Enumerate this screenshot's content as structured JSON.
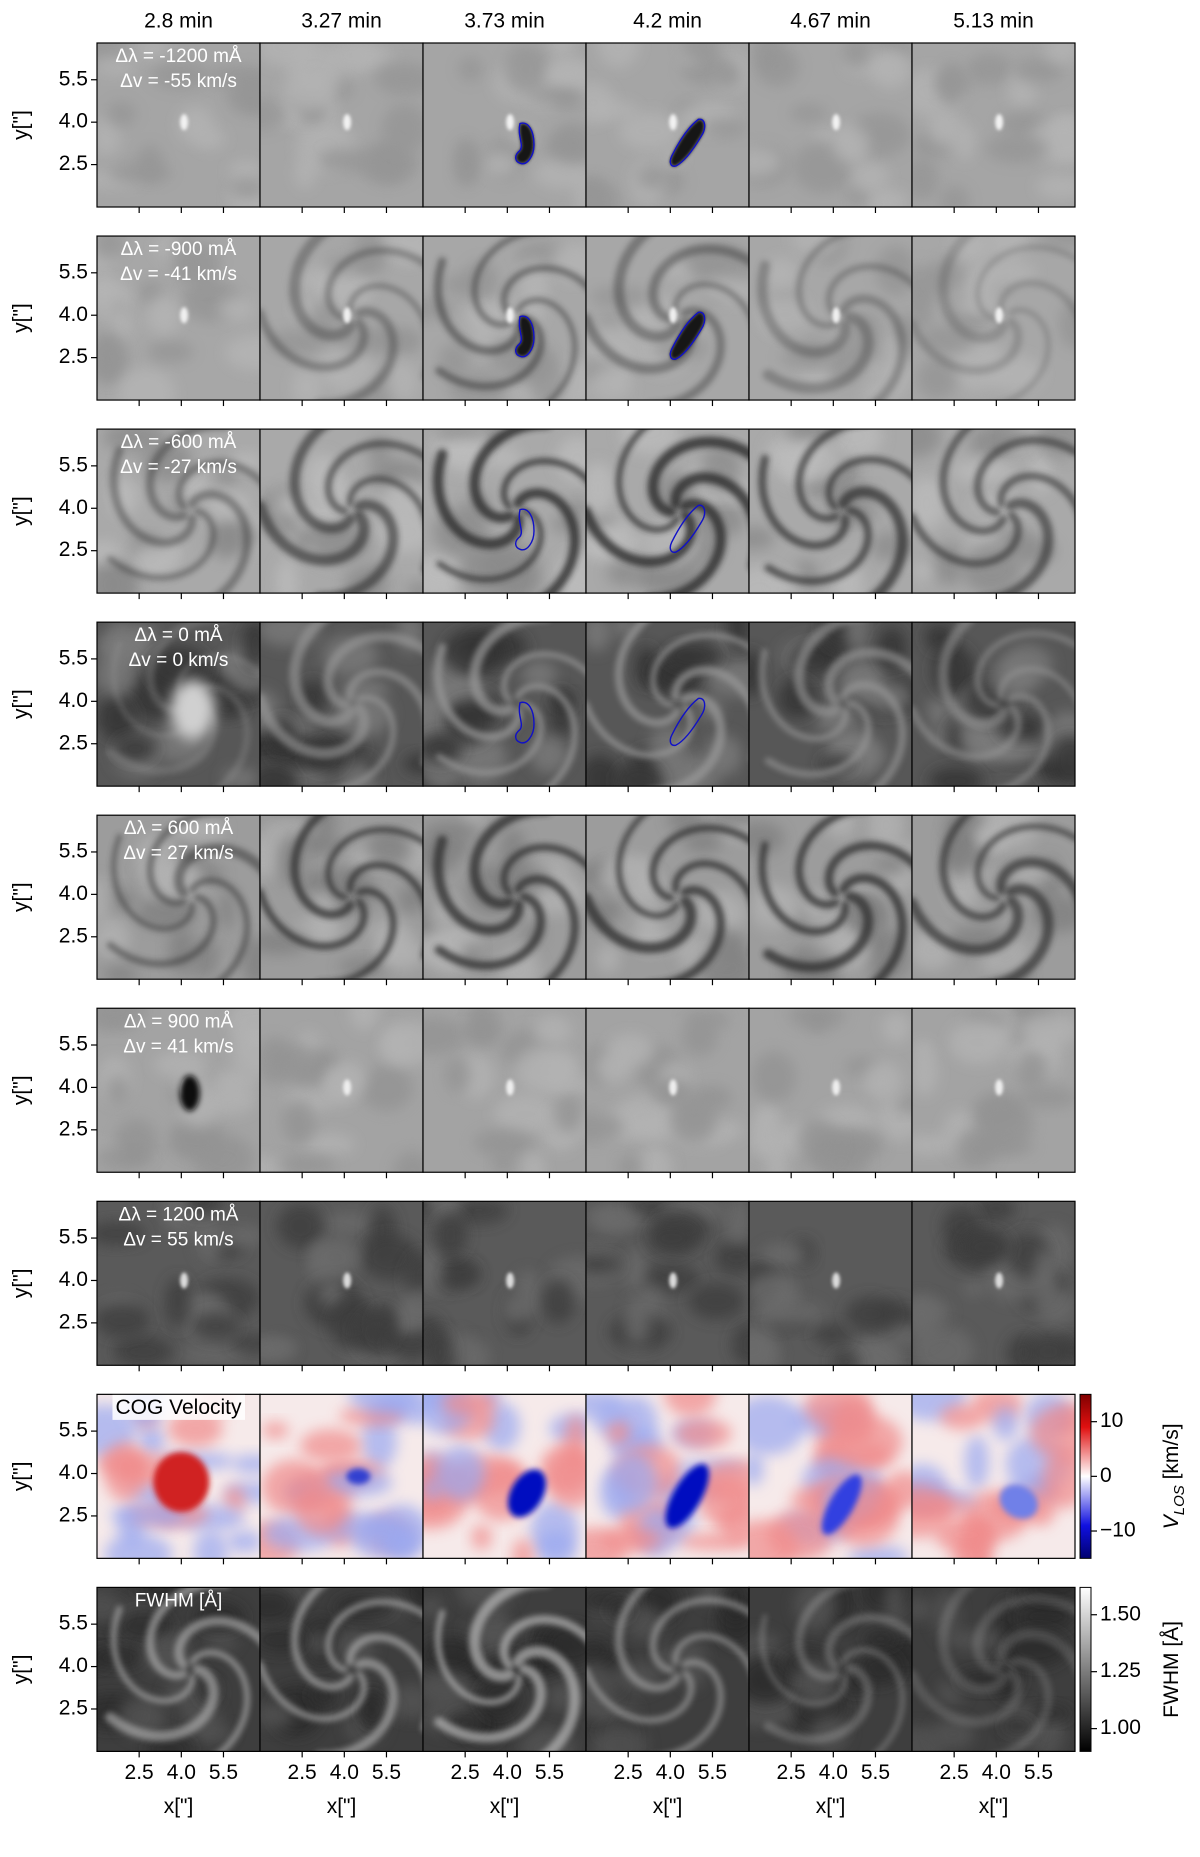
{
  "chart_data": {
    "type": "image-grid",
    "columns": [
      "2.8 min",
      "3.27 min",
      "3.73 min",
      "4.2 min",
      "4.67 min",
      "5.13 min"
    ],
    "xlabel": "x[\"]",
    "ylabel": "y[\"]",
    "xlim": [
      1.0,
      6.8
    ],
    "ylim": [
      1.0,
      6.8
    ],
    "xticks": [
      2.5,
      {
        "value": 4,
        "label": "4.0"
      },
      5.5
    ],
    "yticks": [
      2.5,
      {
        "value": 4,
        "label": "4.0"
      },
      5.5
    ],
    "rows": [
      {
        "label": [
          "Δλ = -1200 mÅ",
          "Δv = -55 km/s"
        ]
      },
      {
        "label": [
          "Δλ = -900 mÅ",
          "Δv = -41 km/s"
        ]
      },
      {
        "label": [
          "Δλ = -600 mÅ",
          "Δv = -27 km/s"
        ]
      },
      {
        "label": [
          "Δλ = 0 mÅ",
          "Δv = 0 km/s"
        ]
      },
      {
        "label": [
          "Δλ = 600 mÅ",
          "Δv = 27 km/s"
        ]
      },
      {
        "label": [
          "Δλ = 900 mÅ",
          "Δv = 41 km/s"
        ]
      },
      {
        "label": [
          "Δλ = 1200 mÅ",
          "Δv = 55 km/s"
        ]
      },
      {
        "label": [
          "COG Velocity"
        ],
        "colorbar": {
          "label": [
            "V",
            "LOS",
            " [km/s]"
          ],
          "lim": [
            -15,
            15
          ],
          "ticks": [
            10,
            0,
            {
              "value": -10,
              "label": "−10"
            }
          ]
        }
      },
      {
        "label": [
          "FWHM [Å]"
        ],
        "colorbar": {
          "label": [
            "FWHM [Å]"
          ],
          "lim": [
            0.9,
            1.62
          ],
          "ticks": [
            {
              "value": 1.5,
              "label": "1.50"
            },
            {
              "value": 1.25,
              "label": "1.25"
            },
            {
              "value": 1.0,
              "label": "1.00"
            }
          ]
        }
      }
    ]
  }
}
